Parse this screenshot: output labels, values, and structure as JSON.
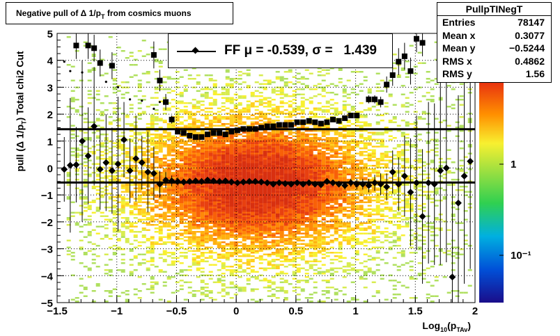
{
  "title": "Negative pull of Δ 1/p",
  "title_sub": "T",
  "title_tail": " from cosmics muons",
  "stats": {
    "name": "PullpTINegT",
    "rows": [
      {
        "label": "Entries",
        "value": "78147"
      },
      {
        "label": "Mean x",
        "value": "0.3077"
      },
      {
        "label": "Mean y",
        "value": "−0.5244"
      },
      {
        "label": "RMS x",
        "value": "0.4862"
      },
      {
        "label": "RMS y",
        "value": "1.56"
      }
    ]
  },
  "legend": {
    "label": "FF μ = -0.539, σ =   1.439"
  },
  "axes": {
    "ytitle": "pull (Δ 1/p",
    "ytitle_sub": "T",
    "ytitle_tail": ")  Total chi2 Cut",
    "xtitle": "Log",
    "xtitle_sub": "10",
    "xtitle_mid": "(p",
    "xtitle_sub2": "TAv",
    "xtitle_tail": ")"
  },
  "colors": {
    "mean_markers": "#000000",
    "sigma_markers": "#000000",
    "frame": "#000000"
  },
  "chart_data": {
    "type": "heatmap",
    "xlim": [
      -1.5,
      2.0
    ],
    "ylim": [
      -5,
      5
    ],
    "x_ticks": [
      "−1.5",
      "−1",
      "−0.5",
      "0",
      "0.5",
      "1",
      "1.5",
      "2"
    ],
    "y_ticks": [
      "−5",
      "−4",
      "−3",
      "−2",
      "−1",
      "0",
      "1",
      "2",
      "3",
      "4",
      "5"
    ],
    "x_tick_values": [
      -1.5,
      -1,
      -0.5,
      0,
      0.5,
      1,
      1.5,
      2
    ],
    "y_tick_values": [
      -5,
      -4,
      -3,
      -2,
      -1,
      0,
      1,
      2,
      3,
      4,
      5
    ],
    "grid": true,
    "colorbar": {
      "labels": [
        "1",
        "10⁻¹"
      ],
      "scale": "log"
    },
    "hlines": [
      1.44,
      -0.54
    ],
    "series": [
      {
        "marker": "diamond",
        "x": [
          -1.44,
          -1.39,
          -1.34,
          -1.29,
          -1.24,
          -1.19,
          -1.14,
          -1.09,
          -1.04,
          -0.99,
          -0.94,
          -0.89,
          -0.84,
          -0.79,
          -0.74,
          -0.69,
          -0.64,
          -0.59,
          -0.54,
          -0.49,
          -0.44,
          -0.39,
          -0.34,
          -0.29,
          -0.24,
          -0.19,
          -0.14,
          -0.09,
          -0.04,
          0.01,
          0.06,
          0.11,
          0.16,
          0.21,
          0.26,
          0.31,
          0.36,
          0.41,
          0.46,
          0.51,
          0.56,
          0.61,
          0.66,
          0.71,
          0.76,
          0.81,
          0.86,
          0.91,
          0.96,
          1.01,
          1.06,
          1.11,
          1.16,
          1.21,
          1.26,
          1.31,
          1.36,
          1.41,
          1.46,
          1.51,
          1.56,
          1.61,
          1.66,
          1.71,
          1.76,
          1.81,
          1.86,
          1.91,
          1.96
        ],
        "y": [
          -0.05,
          0.1,
          0.12,
          1.0,
          0.45,
          1.55,
          -0.05,
          0.2,
          -0.1,
          0.15,
          1.05,
          -0.1,
          0.35,
          0.2,
          -0.15,
          -0.2,
          -0.6,
          -0.45,
          -0.48,
          -0.5,
          -0.52,
          -0.5,
          -0.48,
          -0.5,
          -0.45,
          -0.48,
          -0.5,
          -0.48,
          -0.52,
          -0.55,
          -0.52,
          -0.5,
          -0.5,
          -0.52,
          -0.55,
          -0.6,
          -0.55,
          -0.58,
          -0.6,
          -0.55,
          -0.6,
          -0.55,
          -0.6,
          -0.62,
          -0.5,
          -0.55,
          -0.6,
          -0.65,
          -0.55,
          -0.6,
          -0.6,
          -0.65,
          -0.55,
          -0.6,
          -0.7,
          -0.15,
          -0.6,
          -0.3,
          -0.9,
          -0.55,
          -1.8,
          -0.55,
          -0.6,
          -0.1,
          0.0,
          -4.05,
          -1.3,
          -0.3,
          0.25
        ],
        "err": [
          1.2,
          2.5,
          1.4,
          3.0,
          1.8,
          2.2,
          1.5,
          1.8,
          1.6,
          2.5,
          1.4,
          1.2,
          1.6,
          1.0,
          1.5,
          1.0,
          0.5,
          0.3,
          0.2,
          0.15,
          0.12,
          0.1,
          0.1,
          0.1,
          0.1,
          0.1,
          0.1,
          0.1,
          0.1,
          0.1,
          0.1,
          0.1,
          0.1,
          0.1,
          0.1,
          0.1,
          0.1,
          0.1,
          0.1,
          0.1,
          0.1,
          0.1,
          0.1,
          0.1,
          0.1,
          0.12,
          0.12,
          0.15,
          0.15,
          0.2,
          0.2,
          0.25,
          0.3,
          0.4,
          0.5,
          0.8,
          1.0,
          1.5,
          2.0,
          2.5,
          2.5,
          3.0,
          3.0,
          3.5,
          3.5,
          3.5,
          4.0,
          4.0,
          4.0
        ]
      },
      {
        "marker": "square",
        "x": [
          -1.44,
          -1.39,
          -1.34,
          -1.29,
          -1.24,
          -1.19,
          -1.14,
          -1.09,
          -1.04,
          -0.99,
          -0.94,
          -0.89,
          -0.84,
          -0.79,
          -0.74,
          -0.69,
          -0.64,
          -0.59,
          -0.54,
          -0.49,
          -0.44,
          -0.39,
          -0.34,
          -0.29,
          -0.24,
          -0.19,
          -0.14,
          -0.09,
          -0.04,
          0.01,
          0.06,
          0.11,
          0.16,
          0.21,
          0.26,
          0.31,
          0.36,
          0.41,
          0.46,
          0.51,
          0.56,
          0.61,
          0.66,
          0.71,
          0.76,
          0.81,
          0.86,
          0.91,
          0.96,
          1.01,
          1.06,
          1.11,
          1.16,
          1.21,
          1.26,
          1.31,
          1.36,
          1.41,
          1.46,
          1.51,
          1.56,
          1.61,
          1.66,
          1.71,
          1.76,
          1.81,
          1.86,
          1.91,
          1.96
        ],
        "y": [
          null,
          null,
          4.55,
          null,
          4.55,
          4.45,
          3.9,
          null,
          3.8,
          null,
          null,
          null,
          null,
          null,
          null,
          4.2,
          3.25,
          2.45,
          1.8,
          1.35,
          1.3,
          1.2,
          1.15,
          1.15,
          1.25,
          1.3,
          1.3,
          1.25,
          1.35,
          1.4,
          1.45,
          1.45,
          1.45,
          1.5,
          1.55,
          1.55,
          1.6,
          1.6,
          1.6,
          1.7,
          1.7,
          1.75,
          1.7,
          1.65,
          1.7,
          1.8,
          1.75,
          1.85,
          1.95,
          1.95,
          null,
          2.55,
          2.55,
          2.45,
          3.1,
          3.45,
          3.95,
          4.15,
          3.6,
          4.8,
          4.65,
          null,
          null,
          null,
          null,
          null,
          null,
          null,
          null
        ],
        "err": [
          0,
          0,
          0.5,
          0,
          0.5,
          0.5,
          0.5,
          0,
          0.5,
          0,
          0,
          0,
          0,
          0,
          0,
          0.5,
          0.4,
          0.3,
          0.15,
          0.1,
          0.08,
          0.06,
          0.06,
          0.06,
          0.06,
          0.06,
          0.06,
          0.06,
          0.06,
          0.06,
          0.06,
          0.06,
          0.06,
          0.06,
          0.06,
          0.06,
          0.06,
          0.06,
          0.06,
          0.06,
          0.06,
          0.06,
          0.06,
          0.06,
          0.06,
          0.06,
          0.06,
          0.06,
          0.06,
          0.06,
          0,
          0.15,
          0.15,
          0.2,
          0.3,
          0.4,
          0.5,
          0.5,
          0.5,
          0.5,
          0.5,
          0,
          0,
          0,
          0,
          0,
          0,
          0,
          0
        ]
      },
      {
        "marker": "dot",
        "x": [
          -1.44,
          -1.39,
          -1.34,
          -1.29,
          -1.24,
          -1.19,
          -1.14,
          -1.09,
          -1.04,
          -0.99,
          -0.94,
          -0.89,
          -0.84,
          -0.79,
          -0.74,
          -0.69,
          -0.64,
          -0.59,
          -0.54
        ],
        "y": [
          3.95,
          3.6,
          null,
          3.55,
          null,
          null,
          null,
          3.2,
          null,
          3.0,
          null,
          2.55,
          null,
          2.5,
          null,
          2.2,
          2.45,
          null,
          null
        ],
        "err": [
          0,
          0,
          0,
          0,
          0,
          0,
          0,
          0,
          0,
          0,
          0,
          0,
          0,
          0,
          0,
          0,
          0,
          0,
          0
        ]
      }
    ]
  }
}
